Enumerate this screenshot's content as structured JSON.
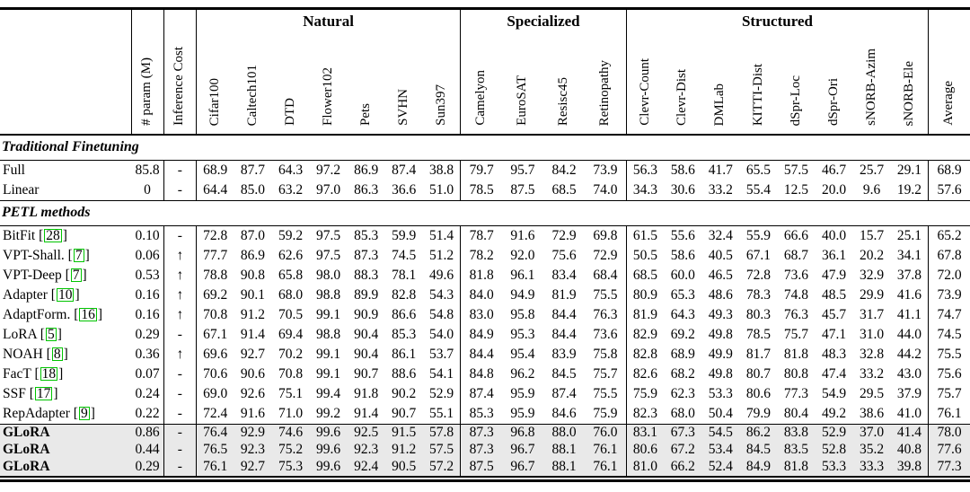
{
  "table": {
    "corner_label": "",
    "row_header_cols": [
      "# param (M)",
      "Inference Cost"
    ],
    "groups": [
      {
        "label": "Natural",
        "cols": [
          "Cifar100",
          "Caltech101",
          "DTD",
          "Flower102",
          "Pets",
          "SVHN",
          "Sun397"
        ]
      },
      {
        "label": "Specialized",
        "cols": [
          "Camelyon",
          "EuroSAT",
          "Resisc45",
          "Retinopathy"
        ]
      },
      {
        "label": "Structured",
        "cols": [
          "Clevr-Count",
          "Clevr-Dist",
          "DMLab",
          "KITTI-Dist",
          "dSpr-Loc",
          "dSpr-Ori",
          "sNORB-Azim",
          "sNORB-Ele"
        ]
      }
    ],
    "average_label": "Average",
    "sections": [
      {
        "title": "Traditional Finetuning",
        "highlight": false,
        "rows": [
          {
            "method": "Full",
            "citation": null,
            "param": "85.8",
            "inference": "-",
            "scores": [
              "68.9",
              "87.7",
              "64.3",
              "97.2",
              "86.9",
              "87.4",
              "38.8",
              "79.7",
              "95.7",
              "84.2",
              "73.9",
              "56.3",
              "58.6",
              "41.7",
              "65.5",
              "57.5",
              "46.7",
              "25.7",
              "29.1"
            ],
            "average": "68.9"
          },
          {
            "method": "Linear",
            "citation": null,
            "param": "0",
            "inference": "-",
            "scores": [
              "64.4",
              "85.0",
              "63.2",
              "97.0",
              "86.3",
              "36.6",
              "51.0",
              "78.5",
              "87.5",
              "68.5",
              "74.0",
              "34.3",
              "30.6",
              "33.2",
              "55.4",
              "12.5",
              "20.0",
              "9.6",
              "19.2"
            ],
            "average": "57.6"
          }
        ]
      },
      {
        "title": "PETL methods",
        "highlight": false,
        "rows": [
          {
            "method": "BitFit",
            "citation": "28",
            "param": "0.10",
            "inference": "-",
            "scores": [
              "72.8",
              "87.0",
              "59.2",
              "97.5",
              "85.3",
              "59.9",
              "51.4",
              "78.7",
              "91.6",
              "72.9",
              "69.8",
              "61.5",
              "55.6",
              "32.4",
              "55.9",
              "66.6",
              "40.0",
              "15.7",
              "25.1"
            ],
            "average": "65.2"
          },
          {
            "method": "VPT-Shall.",
            "citation": "7",
            "param": "0.06",
            "inference": "↑",
            "scores": [
              "77.7",
              "86.9",
              "62.6",
              "97.5",
              "87.3",
              "74.5",
              "51.2",
              "78.2",
              "92.0",
              "75.6",
              "72.9",
              "50.5",
              "58.6",
              "40.5",
              "67.1",
              "68.7",
              "36.1",
              "20.2",
              "34.1"
            ],
            "average": "67.8"
          },
          {
            "method": "VPT-Deep",
            "citation": "7",
            "param": "0.53",
            "inference": "↑",
            "scores": [
              "78.8",
              "90.8",
              "65.8",
              "98.0",
              "88.3",
              "78.1",
              "49.6",
              "81.8",
              "96.1",
              "83.4",
              "68.4",
              "68.5",
              "60.0",
              "46.5",
              "72.8",
              "73.6",
              "47.9",
              "32.9",
              "37.8"
            ],
            "average": "72.0"
          },
          {
            "method": "Adapter",
            "citation": "10",
            "param": "0.16",
            "inference": "↑",
            "scores": [
              "69.2",
              "90.1",
              "68.0",
              "98.8",
              "89.9",
              "82.8",
              "54.3",
              "84.0",
              "94.9",
              "81.9",
              "75.5",
              "80.9",
              "65.3",
              "48.6",
              "78.3",
              "74.8",
              "48.5",
              "29.9",
              "41.6"
            ],
            "average": "73.9"
          },
          {
            "method": "AdaptForm.",
            "citation": "16",
            "param": "0.16",
            "inference": "↑",
            "scores": [
              "70.8",
              "91.2",
              "70.5",
              "99.1",
              "90.9",
              "86.6",
              "54.8",
              "83.0",
              "95.8",
              "84.4",
              "76.3",
              "81.9",
              "64.3",
              "49.3",
              "80.3",
              "76.3",
              "45.7",
              "31.7",
              "41.1"
            ],
            "average": "74.7"
          },
          {
            "method": "LoRA",
            "citation": "5",
            "param": "0.29",
            "inference": "-",
            "scores": [
              "67.1",
              "91.4",
              "69.4",
              "98.8",
              "90.4",
              "85.3",
              "54.0",
              "84.9",
              "95.3",
              "84.4",
              "73.6",
              "82.9",
              "69.2",
              "49.8",
              "78.5",
              "75.7",
              "47.1",
              "31.0",
              "44.0"
            ],
            "average": "74.5"
          },
          {
            "method": "NOAH",
            "citation": "8",
            "param": "0.36",
            "inference": "↑",
            "scores": [
              "69.6",
              "92.7",
              "70.2",
              "99.1",
              "90.4",
              "86.1",
              "53.7",
              "84.4",
              "95.4",
              "83.9",
              "75.8",
              "82.8",
              "68.9",
              "49.9",
              "81.7",
              "81.8",
              "48.3",
              "32.8",
              "44.2"
            ],
            "average": "75.5"
          },
          {
            "method": "FacT",
            "citation": "18",
            "param": "0.07",
            "inference": "-",
            "scores": [
              "70.6",
              "90.6",
              "70.8",
              "99.1",
              "90.7",
              "88.6",
              "54.1",
              "84.8",
              "96.2",
              "84.5",
              "75.7",
              "82.6",
              "68.2",
              "49.8",
              "80.7",
              "80.8",
              "47.4",
              "33.2",
              "43.0"
            ],
            "average": "75.6"
          },
          {
            "method": "SSF",
            "citation": "17",
            "param": "0.24",
            "inference": "-",
            "scores": [
              "69.0",
              "92.6",
              "75.1",
              "99.4",
              "91.8",
              "90.2",
              "52.9",
              "87.4",
              "95.9",
              "87.4",
              "75.5",
              "75.9",
              "62.3",
              "53.3",
              "80.6",
              "77.3",
              "54.9",
              "29.5",
              "37.9"
            ],
            "average": "75.7"
          },
          {
            "method": "RepAdapter",
            "citation": "9",
            "param": "0.22",
            "inference": "-",
            "scores": [
              "72.4",
              "91.6",
              "71.0",
              "99.2",
              "91.4",
              "90.7",
              "55.1",
              "85.3",
              "95.9",
              "84.6",
              "75.9",
              "82.3",
              "68.0",
              "50.4",
              "79.9",
              "80.4",
              "49.2",
              "38.6",
              "41.0"
            ],
            "average": "76.1"
          }
        ]
      },
      {
        "title": null,
        "highlight": true,
        "rows": [
          {
            "method": "GLoRA",
            "citation": null,
            "param": "0.86",
            "inference": "-",
            "scores": [
              "76.4",
              "92.9",
              "74.6",
              "99.6",
              "92.5",
              "91.5",
              "57.8",
              "87.3",
              "96.8",
              "88.0",
              "76.0",
              "83.1",
              "67.3",
              "54.5",
              "86.2",
              "83.8",
              "52.9",
              "37.0",
              "41.4"
            ],
            "average": "78.0"
          },
          {
            "method": "GLoRA",
            "citation": null,
            "param": "0.44",
            "inference": "-",
            "scores": [
              "76.5",
              "92.3",
              "75.2",
              "99.6",
              "92.3",
              "91.2",
              "57.5",
              "87.3",
              "96.7",
              "88.1",
              "76.1",
              "80.6",
              "67.2",
              "53.4",
              "84.5",
              "83.5",
              "52.8",
              "35.2",
              "40.8"
            ],
            "average": "77.6"
          },
          {
            "method": "GLoRA",
            "citation": null,
            "param": "0.29",
            "inference": "-",
            "scores": [
              "76.1",
              "92.7",
              "75.3",
              "99.6",
              "92.4",
              "90.5",
              "57.2",
              "87.5",
              "96.7",
              "88.1",
              "76.1",
              "81.0",
              "66.2",
              "52.4",
              "84.9",
              "81.8",
              "53.3",
              "33.3",
              "39.8"
            ],
            "average": "77.3"
          }
        ]
      }
    ]
  },
  "colors": {
    "citation_green": "#00c400",
    "highlight_gray": "#e9e9e9",
    "rule_black": "#000000"
  }
}
